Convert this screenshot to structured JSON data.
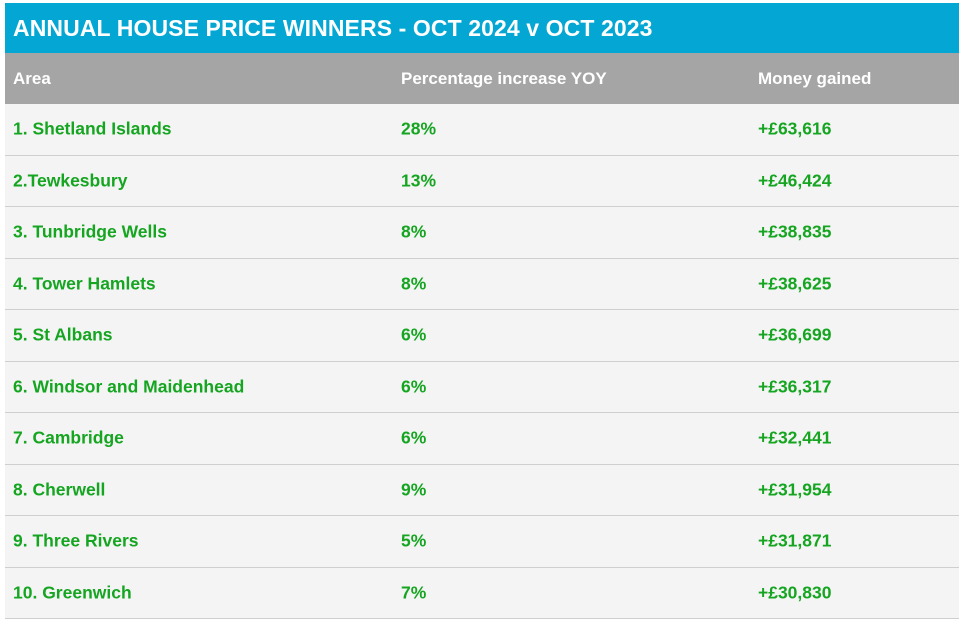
{
  "title": "ANNUAL HOUSE PRICE WINNERS - OCT 2024 v OCT 2023",
  "colors": {
    "title_bg": "#04a7d4",
    "header_bg": "#a5a5a5",
    "row_text": "#15a521",
    "row_bg": "#f4f4f4"
  },
  "chart_data": {
    "type": "table",
    "title": "ANNUAL HOUSE PRICE WINNERS - OCT 2024 v OCT 2023",
    "columns": [
      "Area",
      "Percentage increase YOY",
      "Money gained"
    ],
    "rows": [
      {
        "area": "1. Shetland Islands",
        "pct": "28%",
        "money": "+£63,616"
      },
      {
        "area": "2.Tewkesbury",
        "pct": "13%",
        "money": "+£46,424"
      },
      {
        "area": "3. Tunbridge Wells",
        "pct": "8%",
        "money": "+£38,835"
      },
      {
        "area": "4. Tower Hamlets",
        "pct": "8%",
        "money": "+£38,625"
      },
      {
        "area": "5. St Albans",
        "pct": "6%",
        "money": "+£36,699"
      },
      {
        "area": "6. Windsor and Maidenhead",
        "pct": "6%",
        "money": "+£36,317"
      },
      {
        "area": "7. Cambridge",
        "pct": "6%",
        "money": "+£32,441"
      },
      {
        "area": "8. Cherwell",
        "pct": "9%",
        "money": "+£31,954"
      },
      {
        "area": "9. Three Rivers",
        "pct": "5%",
        "money": "+£31,871"
      },
      {
        "area": "10. Greenwich",
        "pct": "7%",
        "money": "+£30,830"
      }
    ]
  }
}
